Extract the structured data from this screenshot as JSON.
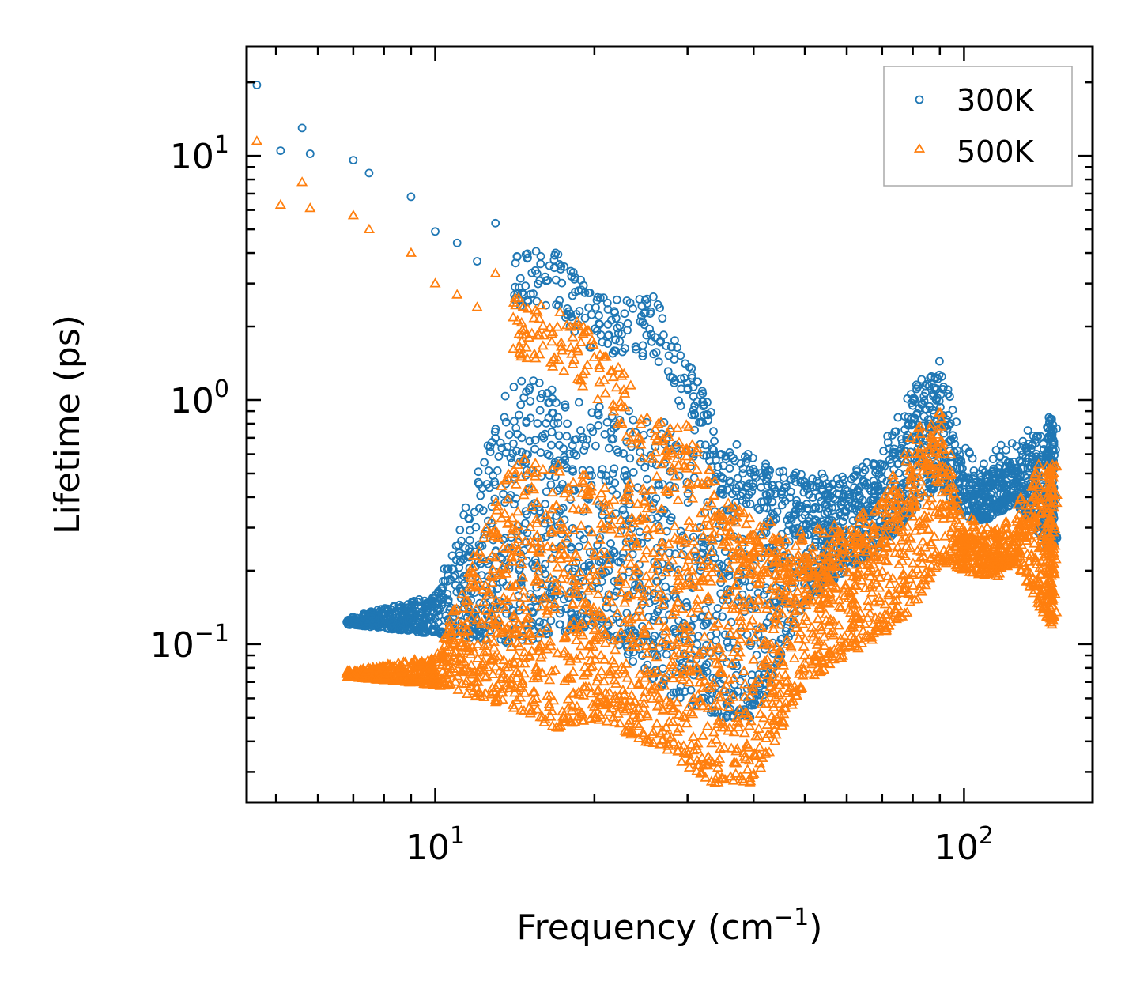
{
  "chart_data": {
    "type": "scatter",
    "xlabel": "Frequency (cm",
    "xlabel_sup": "−1",
    "xlabel_end": ")",
    "ylabel": "Lifetime (ps)",
    "xscale": "log",
    "yscale": "log",
    "xlim": [
      4.4,
      175
    ],
    "ylim": [
      0.0225,
      28
    ],
    "x_ticks": [
      {
        "value": 10,
        "base": "10",
        "exp": "1"
      },
      {
        "value": 100,
        "base": "10",
        "exp": "2"
      }
    ],
    "y_ticks": [
      {
        "value": 10,
        "base": "10",
        "exp": "1"
      },
      {
        "value": 1,
        "base": "10",
        "exp": "0"
      },
      {
        "value": 0.1,
        "base": "10",
        "exp": "−1"
      }
    ],
    "legend": {
      "placement": "top-right"
    },
    "series": [
      {
        "name": "300K",
        "marker": "circle",
        "color": "#1f77b4",
        "trend": [
          [
            4.6,
            19.5
          ],
          [
            5.1,
            10.5
          ],
          [
            5.6,
            13
          ],
          [
            5.8,
            10.2
          ],
          [
            7,
            9.6
          ],
          [
            7.5,
            8.5
          ],
          [
            9,
            6.8
          ],
          [
            10,
            4.9
          ],
          [
            11,
            4.4
          ],
          [
            12,
            3.7
          ],
          [
            13,
            5.3
          ],
          [
            14,
            3
          ],
          [
            17,
            3.1
          ],
          [
            20,
            2
          ],
          [
            26,
            2
          ],
          [
            30,
            1.1
          ],
          [
            35,
            0.55
          ],
          [
            40,
            0.45
          ],
          [
            45,
            0.38
          ],
          [
            50,
            0.36
          ],
          [
            60,
            0.35
          ],
          [
            70,
            0.5
          ],
          [
            80,
            0.85
          ],
          [
            90,
            1.1
          ],
          [
            100,
            0.48
          ],
          [
            110,
            0.44
          ],
          [
            125,
            0.55
          ],
          [
            145,
            0.6
          ]
        ],
        "band_low": [
          [
            7,
            0.12
          ],
          [
            10,
            0.11
          ],
          [
            14,
            0.1
          ],
          [
            20,
            0.12
          ],
          [
            28,
            0.06
          ],
          [
            35,
            0.05
          ],
          [
            40,
            0.05
          ],
          [
            50,
            0.15
          ],
          [
            60,
            0.2
          ],
          [
            70,
            0.25
          ],
          [
            80,
            0.35
          ],
          [
            90,
            0.45
          ],
          [
            100,
            0.33
          ],
          [
            110,
            0.32
          ],
          [
            125,
            0.38
          ],
          [
            145,
            0.25
          ]
        ],
        "band_high": [
          [
            7,
            0.13
          ],
          [
            10,
            0.16
          ],
          [
            14,
            1.3
          ],
          [
            20,
            1.0
          ],
          [
            28,
            0.8
          ],
          [
            35,
            0.6
          ],
          [
            40,
            0.55
          ],
          [
            50,
            0.5
          ],
          [
            60,
            0.5
          ],
          [
            70,
            0.6
          ],
          [
            80,
            1.1
          ],
          [
            90,
            1.35
          ],
          [
            100,
            0.5
          ],
          [
            110,
            0.5
          ],
          [
            125,
            0.6
          ],
          [
            145,
            0.85
          ]
        ]
      },
      {
        "name": "500K",
        "marker": "triangle",
        "color": "#ff7f0e",
        "trend": [
          [
            4.6,
            11.5
          ],
          [
            5.1,
            6.3
          ],
          [
            5.6,
            7.8
          ],
          [
            5.8,
            6.1
          ],
          [
            7,
            5.7
          ],
          [
            7.5,
            5
          ],
          [
            9,
            4
          ],
          [
            10,
            3
          ],
          [
            11,
            2.7
          ],
          [
            12,
            2.4
          ],
          [
            13,
            3.3
          ],
          [
            14,
            2
          ],
          [
            17,
            1.8
          ],
          [
            20,
            1.4
          ],
          [
            26,
            0.65
          ],
          [
            30,
            0.6
          ],
          [
            35,
            0.3
          ],
          [
            40,
            0.25
          ],
          [
            45,
            0.2
          ],
          [
            50,
            0.18
          ],
          [
            60,
            0.2
          ],
          [
            70,
            0.3
          ],
          [
            80,
            0.55
          ],
          [
            90,
            0.7
          ],
          [
            100,
            0.27
          ],
          [
            110,
            0.23
          ],
          [
            125,
            0.28
          ],
          [
            145,
            0.5
          ]
        ],
        "band_low": [
          [
            7,
            0.073
          ],
          [
            10,
            0.068
          ],
          [
            14,
            0.055
          ],
          [
            17,
            0.045
          ],
          [
            20,
            0.05
          ],
          [
            28,
            0.035
          ],
          [
            33,
            0.027
          ],
          [
            40,
            0.027
          ],
          [
            50,
            0.07
          ],
          [
            60,
            0.09
          ],
          [
            70,
            0.11
          ],
          [
            80,
            0.14
          ],
          [
            90,
            0.22
          ],
          [
            100,
            0.2
          ],
          [
            110,
            0.19
          ],
          [
            125,
            0.22
          ],
          [
            145,
            0.12
          ]
        ],
        "band_high": [
          [
            7,
            0.078
          ],
          [
            10,
            0.09
          ],
          [
            14,
            0.6
          ],
          [
            20,
            0.5
          ],
          [
            28,
            0.45
          ],
          [
            35,
            0.4
          ],
          [
            40,
            0.33
          ],
          [
            50,
            0.3
          ],
          [
            60,
            0.32
          ],
          [
            70,
            0.4
          ],
          [
            80,
            0.6
          ],
          [
            90,
            0.75
          ],
          [
            100,
            0.3
          ],
          [
            110,
            0.28
          ],
          [
            125,
            0.32
          ],
          [
            145,
            0.55
          ]
        ]
      }
    ]
  }
}
